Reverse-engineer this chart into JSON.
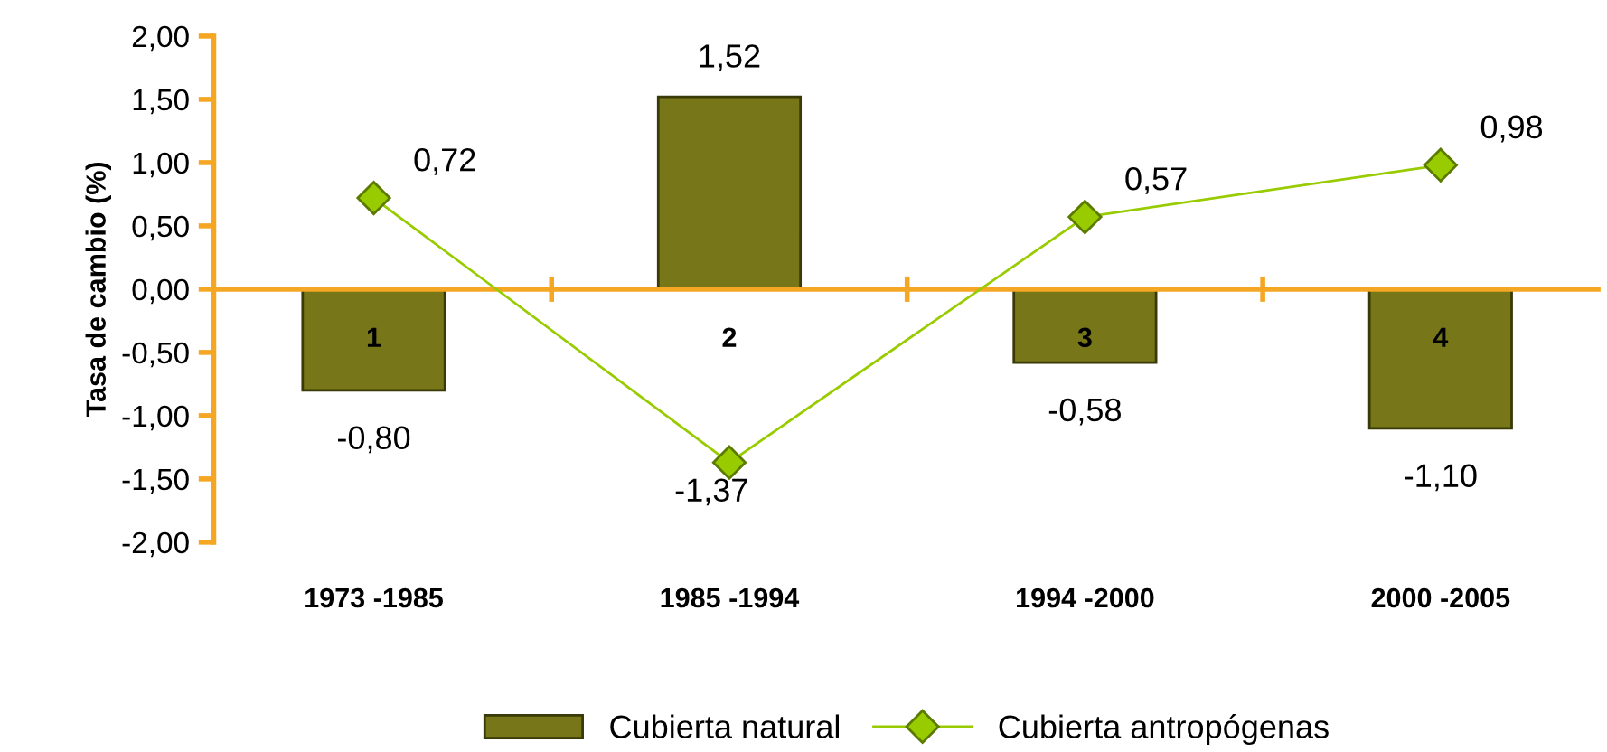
{
  "chart_data": {
    "type": "bar",
    "ylabel": "Tasa de cambio (%)",
    "categories": [
      "1973 -1985",
      "1985 -1994",
      "1994 -2000",
      "2000 -2005"
    ],
    "series": [
      {
        "name": "Cubierta natural",
        "color": "#77771a",
        "values": [
          -0.8,
          1.52,
          -0.58,
          -1.1
        ],
        "value_labels": [
          "-0,80",
          "1,52",
          "-0,58",
          "-1,10"
        ]
      },
      {
        "name": "Cubierta antropógenas",
        "type": "line",
        "color": "#99cc00",
        "marker": "diamond",
        "values": [
          0.72,
          -1.37,
          0.57,
          0.98
        ],
        "value_labels": [
          "0,72",
          "-1,37",
          "0,57",
          "0,98"
        ]
      }
    ],
    "annotations": [
      "1",
      "2",
      "3",
      "4"
    ],
    "ref_lines": [
      {
        "axis": "y",
        "value": 0,
        "color": "#f5a623"
      }
    ],
    "ylim": [
      -2,
      2
    ],
    "yticks": [
      {
        "value": -2,
        "label": "-2,00"
      },
      {
        "value": -1.5,
        "label": "-1,50"
      },
      {
        "value": -1,
        "label": "-1,00"
      },
      {
        "value": -0.5,
        "label": "-0,50"
      },
      {
        "value": 0,
        "label": "0,00"
      },
      {
        "value": 0.5,
        "label": "0,50"
      },
      {
        "value": 1,
        "label": "1,00"
      },
      {
        "value": 1.5,
        "label": "1,50"
      },
      {
        "value": 2,
        "label": "2,00"
      }
    ],
    "grid": false,
    "legend": "bottom"
  }
}
